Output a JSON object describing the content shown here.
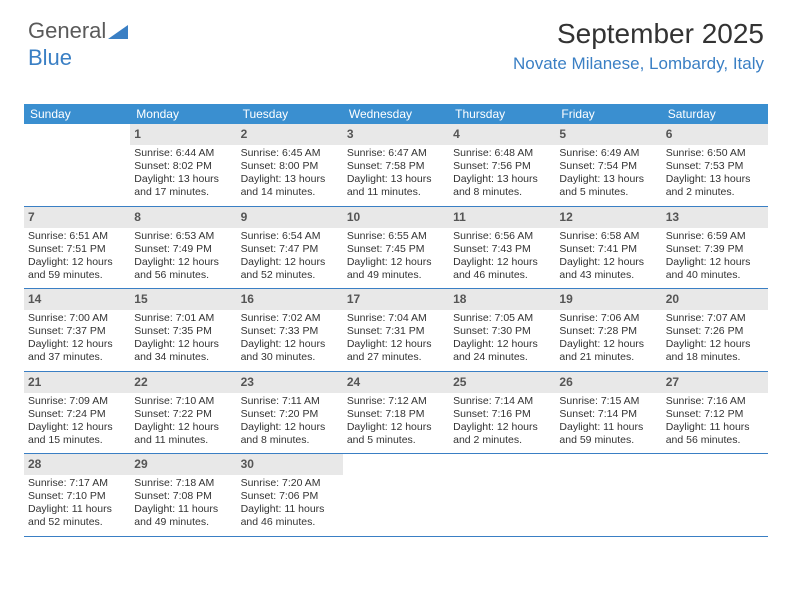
{
  "logo": {
    "text_dark": "General",
    "text_blue": "Blue",
    "tri_color": "#3a7fc4"
  },
  "header": {
    "month_title": "September 2025",
    "location": "Novate Milanese, Lombardy, Italy"
  },
  "colors": {
    "header_bg": "#3a8fd0",
    "header_text": "#ffffff",
    "shade_bg": "#e8e8e8",
    "row_border": "#3a7fc4",
    "text": "#333333",
    "location": "#3a7fc4"
  },
  "weekdays": [
    "Sunday",
    "Monday",
    "Tuesday",
    "Wednesday",
    "Thursday",
    "Friday",
    "Saturday"
  ],
  "weeks": [
    [
      null,
      {
        "n": "1",
        "sr": "Sunrise: 6:44 AM",
        "ss": "Sunset: 8:02 PM",
        "d1": "Daylight: 13 hours",
        "d2": "and 17 minutes."
      },
      {
        "n": "2",
        "sr": "Sunrise: 6:45 AM",
        "ss": "Sunset: 8:00 PM",
        "d1": "Daylight: 13 hours",
        "d2": "and 14 minutes."
      },
      {
        "n": "3",
        "sr": "Sunrise: 6:47 AM",
        "ss": "Sunset: 7:58 PM",
        "d1": "Daylight: 13 hours",
        "d2": "and 11 minutes."
      },
      {
        "n": "4",
        "sr": "Sunrise: 6:48 AM",
        "ss": "Sunset: 7:56 PM",
        "d1": "Daylight: 13 hours",
        "d2": "and 8 minutes."
      },
      {
        "n": "5",
        "sr": "Sunrise: 6:49 AM",
        "ss": "Sunset: 7:54 PM",
        "d1": "Daylight: 13 hours",
        "d2": "and 5 minutes."
      },
      {
        "n": "6",
        "sr": "Sunrise: 6:50 AM",
        "ss": "Sunset: 7:53 PM",
        "d1": "Daylight: 13 hours",
        "d2": "and 2 minutes."
      }
    ],
    [
      {
        "n": "7",
        "sr": "Sunrise: 6:51 AM",
        "ss": "Sunset: 7:51 PM",
        "d1": "Daylight: 12 hours",
        "d2": "and 59 minutes."
      },
      {
        "n": "8",
        "sr": "Sunrise: 6:53 AM",
        "ss": "Sunset: 7:49 PM",
        "d1": "Daylight: 12 hours",
        "d2": "and 56 minutes."
      },
      {
        "n": "9",
        "sr": "Sunrise: 6:54 AM",
        "ss": "Sunset: 7:47 PM",
        "d1": "Daylight: 12 hours",
        "d2": "and 52 minutes."
      },
      {
        "n": "10",
        "sr": "Sunrise: 6:55 AM",
        "ss": "Sunset: 7:45 PM",
        "d1": "Daylight: 12 hours",
        "d2": "and 49 minutes."
      },
      {
        "n": "11",
        "sr": "Sunrise: 6:56 AM",
        "ss": "Sunset: 7:43 PM",
        "d1": "Daylight: 12 hours",
        "d2": "and 46 minutes."
      },
      {
        "n": "12",
        "sr": "Sunrise: 6:58 AM",
        "ss": "Sunset: 7:41 PM",
        "d1": "Daylight: 12 hours",
        "d2": "and 43 minutes."
      },
      {
        "n": "13",
        "sr": "Sunrise: 6:59 AM",
        "ss": "Sunset: 7:39 PM",
        "d1": "Daylight: 12 hours",
        "d2": "and 40 minutes."
      }
    ],
    [
      {
        "n": "14",
        "sr": "Sunrise: 7:00 AM",
        "ss": "Sunset: 7:37 PM",
        "d1": "Daylight: 12 hours",
        "d2": "and 37 minutes."
      },
      {
        "n": "15",
        "sr": "Sunrise: 7:01 AM",
        "ss": "Sunset: 7:35 PM",
        "d1": "Daylight: 12 hours",
        "d2": "and 34 minutes."
      },
      {
        "n": "16",
        "sr": "Sunrise: 7:02 AM",
        "ss": "Sunset: 7:33 PM",
        "d1": "Daylight: 12 hours",
        "d2": "and 30 minutes."
      },
      {
        "n": "17",
        "sr": "Sunrise: 7:04 AM",
        "ss": "Sunset: 7:31 PM",
        "d1": "Daylight: 12 hours",
        "d2": "and 27 minutes."
      },
      {
        "n": "18",
        "sr": "Sunrise: 7:05 AM",
        "ss": "Sunset: 7:30 PM",
        "d1": "Daylight: 12 hours",
        "d2": "and 24 minutes."
      },
      {
        "n": "19",
        "sr": "Sunrise: 7:06 AM",
        "ss": "Sunset: 7:28 PM",
        "d1": "Daylight: 12 hours",
        "d2": "and 21 minutes."
      },
      {
        "n": "20",
        "sr": "Sunrise: 7:07 AM",
        "ss": "Sunset: 7:26 PM",
        "d1": "Daylight: 12 hours",
        "d2": "and 18 minutes."
      }
    ],
    [
      {
        "n": "21",
        "sr": "Sunrise: 7:09 AM",
        "ss": "Sunset: 7:24 PM",
        "d1": "Daylight: 12 hours",
        "d2": "and 15 minutes."
      },
      {
        "n": "22",
        "sr": "Sunrise: 7:10 AM",
        "ss": "Sunset: 7:22 PM",
        "d1": "Daylight: 12 hours",
        "d2": "and 11 minutes."
      },
      {
        "n": "23",
        "sr": "Sunrise: 7:11 AM",
        "ss": "Sunset: 7:20 PM",
        "d1": "Daylight: 12 hours",
        "d2": "and 8 minutes."
      },
      {
        "n": "24",
        "sr": "Sunrise: 7:12 AM",
        "ss": "Sunset: 7:18 PM",
        "d1": "Daylight: 12 hours",
        "d2": "and 5 minutes."
      },
      {
        "n": "25",
        "sr": "Sunrise: 7:14 AM",
        "ss": "Sunset: 7:16 PM",
        "d1": "Daylight: 12 hours",
        "d2": "and 2 minutes."
      },
      {
        "n": "26",
        "sr": "Sunrise: 7:15 AM",
        "ss": "Sunset: 7:14 PM",
        "d1": "Daylight: 11 hours",
        "d2": "and 59 minutes."
      },
      {
        "n": "27",
        "sr": "Sunrise: 7:16 AM",
        "ss": "Sunset: 7:12 PM",
        "d1": "Daylight: 11 hours",
        "d2": "and 56 minutes."
      }
    ],
    [
      {
        "n": "28",
        "sr": "Sunrise: 7:17 AM",
        "ss": "Sunset: 7:10 PM",
        "d1": "Daylight: 11 hours",
        "d2": "and 52 minutes."
      },
      {
        "n": "29",
        "sr": "Sunrise: 7:18 AM",
        "ss": "Sunset: 7:08 PM",
        "d1": "Daylight: 11 hours",
        "d2": "and 49 minutes."
      },
      {
        "n": "30",
        "sr": "Sunrise: 7:20 AM",
        "ss": "Sunset: 7:06 PM",
        "d1": "Daylight: 11 hours",
        "d2": "and 46 minutes."
      },
      null,
      null,
      null,
      null
    ]
  ]
}
